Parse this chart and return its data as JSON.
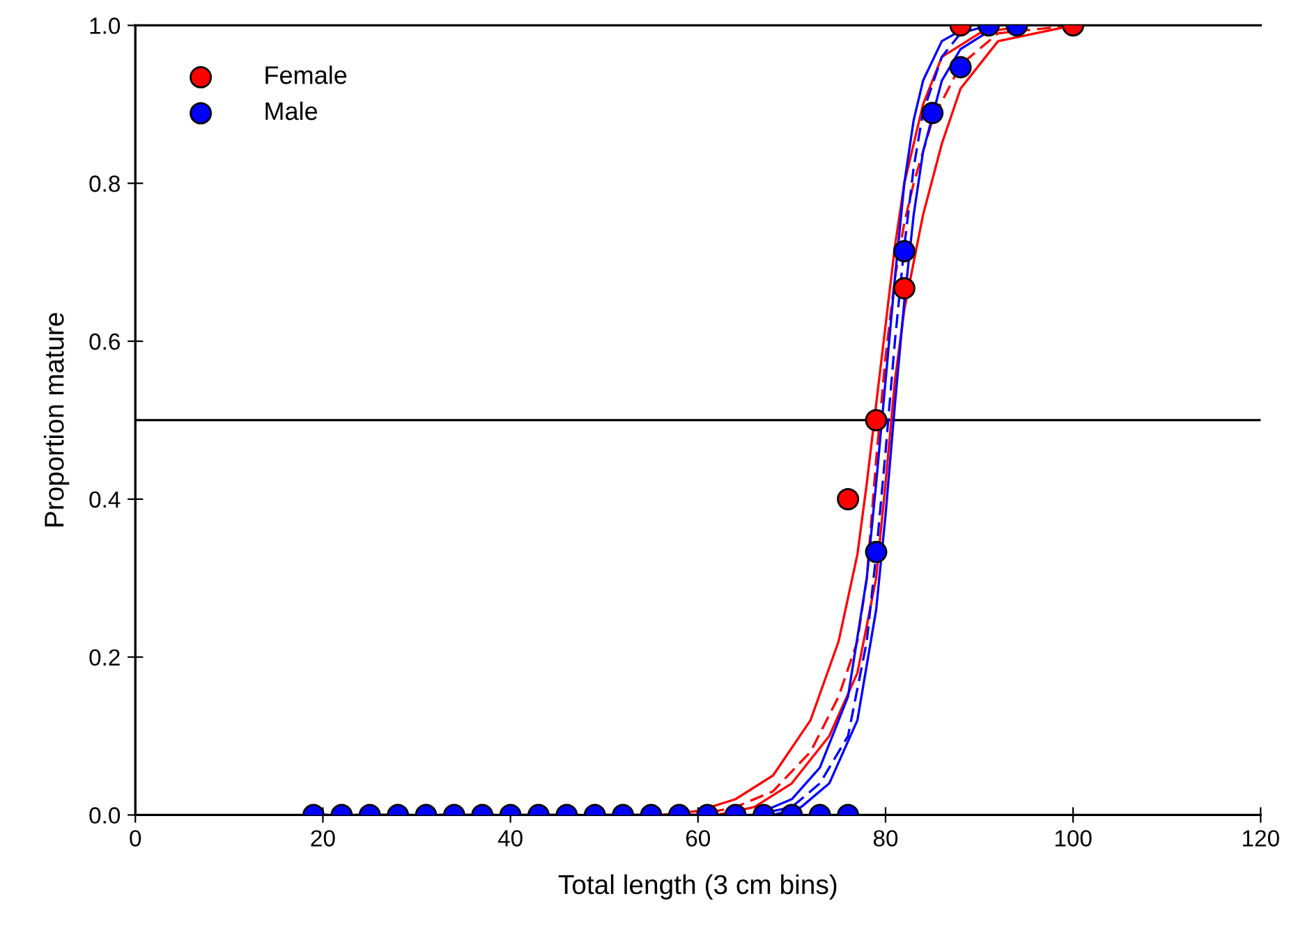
{
  "chart_data": {
    "type": "scatter",
    "xlabel": "Total length (3 cm bins)",
    "ylabel": "Proportion mature",
    "xlim": [
      0,
      120
    ],
    "ylim": [
      0,
      1.0
    ],
    "xticks": [
      0,
      20,
      40,
      60,
      80,
      100,
      120
    ],
    "yticks": [
      {
        "value": 0,
        "label": "0.0"
      },
      {
        "value": 0.2,
        "label": "0.2"
      },
      {
        "value": 0.4,
        "label": "0.4"
      },
      {
        "value": 0.6,
        "label": "0.6"
      },
      {
        "value": 0.8,
        "label": "0.8"
      },
      {
        "value": 1.0,
        "label": "1.0"
      }
    ],
    "grid": false,
    "legend": "top left",
    "marker": "circle",
    "ref_lines": [
      {
        "axis": "y",
        "value": 0.5,
        "color": "#000000"
      }
    ],
    "series": [
      {
        "type": "line",
        "color": "#ff0000",
        "line_style": "solid",
        "marker": "none",
        "x": [
          56,
          60,
          64,
          68,
          72,
          75,
          77,
          78,
          79,
          80,
          81,
          82,
          84,
          86,
          90,
          95
        ],
        "values": [
          0,
          0.005,
          0.02,
          0.05,
          0.12,
          0.22,
          0.33,
          0.42,
          0.52,
          0.62,
          0.72,
          0.8,
          0.9,
          0.96,
          0.99,
          1.0
        ]
      },
      {
        "type": "line",
        "color": "#ff0000",
        "line_style": "dashed",
        "marker": "none",
        "x": [
          19,
          60,
          64,
          68,
          72,
          75,
          77,
          78,
          79,
          80,
          81,
          82,
          83,
          85,
          88,
          92,
          100
        ],
        "values": [
          0,
          0,
          0.01,
          0.03,
          0.08,
          0.15,
          0.22,
          0.3,
          0.45,
          0.58,
          0.68,
          0.75,
          0.8,
          0.88,
          0.95,
          0.99,
          1.0
        ]
      },
      {
        "type": "line",
        "color": "#ff0000",
        "line_style": "solid",
        "marker": "none",
        "x": [
          62,
          66,
          70,
          74,
          77,
          79,
          80,
          81,
          82,
          84,
          86,
          88,
          92,
          100
        ],
        "values": [
          0,
          0.01,
          0.04,
          0.1,
          0.18,
          0.3,
          0.42,
          0.55,
          0.64,
          0.76,
          0.85,
          0.92,
          0.98,
          1.0
        ]
      },
      {
        "type": "line",
        "color": "#0000ff",
        "line_style": "solid",
        "marker": "none",
        "x": [
          66,
          70,
          73,
          76,
          78,
          79,
          80,
          81,
          82,
          83,
          84,
          86,
          89
        ],
        "values": [
          0,
          0.02,
          0.06,
          0.15,
          0.3,
          0.42,
          0.55,
          0.68,
          0.8,
          0.88,
          0.93,
          0.98,
          1.0
        ]
      },
      {
        "type": "line",
        "color": "#0000ff",
        "line_style": "dashed",
        "marker": "none",
        "x": [
          19,
          66,
          70,
          73,
          76,
          78,
          79,
          80,
          81,
          82,
          83,
          84,
          86,
          88,
          91
        ],
        "values": [
          0,
          0,
          0.01,
          0.04,
          0.1,
          0.22,
          0.33,
          0.46,
          0.6,
          0.72,
          0.82,
          0.89,
          0.96,
          0.99,
          1.0
        ]
      },
      {
        "type": "line",
        "color": "#0000ff",
        "line_style": "solid",
        "marker": "none",
        "x": [
          68,
          71,
          74,
          77,
          79,
          80,
          81,
          82,
          83,
          84,
          86,
          88,
          92
        ],
        "values": [
          0,
          0.01,
          0.04,
          0.12,
          0.26,
          0.38,
          0.52,
          0.65,
          0.76,
          0.84,
          0.93,
          0.97,
          1.0
        ]
      },
      {
        "name": "Female",
        "color": "#ff0000",
        "x": [
          76,
          79,
          82,
          85,
          88,
          100
        ],
        "values": [
          0.4,
          0.5,
          0.667,
          null,
          1.0,
          1.0
        ]
      },
      {
        "name": "Male",
        "color": "#0000ff",
        "x": [
          19,
          22,
          25,
          28,
          31,
          34,
          37,
          40,
          43,
          46,
          49,
          52,
          55,
          58,
          61,
          64,
          67,
          70,
          73,
          76,
          79,
          82,
          85,
          88,
          91,
          94
        ],
        "values": [
          0,
          0,
          0,
          0,
          0,
          0,
          0,
          0,
          0,
          0,
          0,
          0,
          0,
          0,
          0,
          0,
          0,
          0,
          0,
          0,
          0.333,
          0.714,
          0.889,
          0.947,
          1.0,
          1.0
        ]
      }
    ]
  }
}
